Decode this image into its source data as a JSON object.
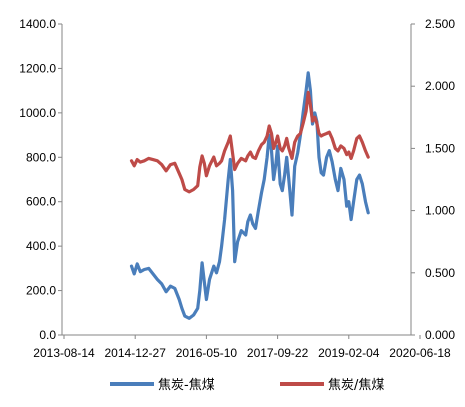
{
  "chart_data": {
    "type": "line",
    "title": "",
    "x_ticks": [
      "2013-08-14",
      "2014-12-27",
      "2016-05-10",
      "2017-09-22",
      "2019-02-04",
      "2020-06-18"
    ],
    "y_left": {
      "ylim": [
        0,
        1400
      ],
      "ticks": [
        "0.0",
        "200.0",
        "400.0",
        "600.0",
        "800.0",
        "1000.0",
        "1200.0",
        "1400.0"
      ]
    },
    "y_right": {
      "ylim": [
        0,
        2.5
      ],
      "ticks": [
        "0.000",
        "0.500",
        "1.000",
        "1.500",
        "2.000",
        "2.500"
      ]
    },
    "legend_position": "bottom",
    "series": [
      {
        "name": "焦炭-焦煤",
        "axis": "left",
        "color": "#4a7ebb",
        "points": [
          [
            "2014-12-01",
            310
          ],
          [
            "2014-12-20",
            275
          ],
          [
            "2015-01-10",
            320
          ],
          [
            "2015-02-01",
            285
          ],
          [
            "2015-03-01",
            295
          ],
          [
            "2015-04-01",
            300
          ],
          [
            "2015-05-01",
            275
          ],
          [
            "2015-06-01",
            250
          ],
          [
            "2015-07-01",
            230
          ],
          [
            "2015-08-01",
            195
          ],
          [
            "2015-09-01",
            220
          ],
          [
            "2015-10-01",
            210
          ],
          [
            "2015-11-01",
            160
          ],
          [
            "2015-11-20",
            120
          ],
          [
            "2015-12-10",
            85
          ],
          [
            "2016-01-10",
            75
          ],
          [
            "2016-02-10",
            90
          ],
          [
            "2016-03-10",
            120
          ],
          [
            "2016-03-25",
            200
          ],
          [
            "2016-04-10",
            325
          ],
          [
            "2016-04-25",
            240
          ],
          [
            "2016-05-10",
            160
          ],
          [
            "2016-06-01",
            250
          ],
          [
            "2016-07-01",
            310
          ],
          [
            "2016-07-20",
            280
          ],
          [
            "2016-08-10",
            330
          ],
          [
            "2016-08-25",
            400
          ],
          [
            "2016-09-15",
            520
          ],
          [
            "2016-10-10",
            700
          ],
          [
            "2016-10-25",
            790
          ],
          [
            "2016-11-10",
            650
          ],
          [
            "2016-11-25",
            330
          ],
          [
            "2016-12-15",
            420
          ],
          [
            "2017-01-10",
            470
          ],
          [
            "2017-02-10",
            450
          ],
          [
            "2017-02-25",
            510
          ],
          [
            "2017-03-15",
            540
          ],
          [
            "2017-04-01",
            500
          ],
          [
            "2017-04-20",
            480
          ],
          [
            "2017-05-10",
            560
          ],
          [
            "2017-06-01",
            640
          ],
          [
            "2017-06-20",
            700
          ],
          [
            "2017-07-10",
            800
          ],
          [
            "2017-07-25",
            900
          ],
          [
            "2017-08-10",
            830
          ],
          [
            "2017-08-25",
            700
          ],
          [
            "2017-09-10",
            770
          ],
          [
            "2017-09-22",
            850
          ],
          [
            "2017-10-10",
            680
          ],
          [
            "2017-10-25",
            650
          ],
          [
            "2017-11-10",
            720
          ],
          [
            "2017-11-25",
            800
          ],
          [
            "2017-12-10",
            700
          ],
          [
            "2018-01-01",
            540
          ],
          [
            "2018-01-20",
            760
          ],
          [
            "2018-02-10",
            820
          ],
          [
            "2018-03-01",
            900
          ],
          [
            "2018-03-20",
            1000
          ],
          [
            "2018-04-10",
            1100
          ],
          [
            "2018-04-25",
            1180
          ],
          [
            "2018-05-10",
            1100
          ],
          [
            "2018-05-25",
            950
          ],
          [
            "2018-06-10",
            1000
          ],
          [
            "2018-06-25",
            960
          ],
          [
            "2018-07-10",
            800
          ],
          [
            "2018-07-25",
            730
          ],
          [
            "2018-08-10",
            720
          ],
          [
            "2018-09-01",
            800
          ],
          [
            "2018-09-20",
            830
          ],
          [
            "2018-10-10",
            780
          ],
          [
            "2018-11-01",
            700
          ],
          [
            "2018-11-20",
            650
          ],
          [
            "2018-12-10",
            750
          ],
          [
            "2019-01-01",
            700
          ],
          [
            "2019-01-20",
            580
          ],
          [
            "2019-02-04",
            600
          ],
          [
            "2019-02-20",
            520
          ],
          [
            "2019-03-10",
            600
          ],
          [
            "2019-04-01",
            700
          ],
          [
            "2019-04-20",
            720
          ],
          [
            "2019-05-10",
            680
          ],
          [
            "2019-06-01",
            600
          ],
          [
            "2019-06-20",
            550
          ]
        ]
      },
      {
        "name": "焦炭/焦煤",
        "axis": "right",
        "color": "#be4b48",
        "points": [
          [
            "2014-12-01",
            1.4
          ],
          [
            "2014-12-20",
            1.36
          ],
          [
            "2015-01-10",
            1.41
          ],
          [
            "2015-02-01",
            1.39
          ],
          [
            "2015-03-01",
            1.4
          ],
          [
            "2015-04-01",
            1.42
          ],
          [
            "2015-05-01",
            1.41
          ],
          [
            "2015-06-01",
            1.4
          ],
          [
            "2015-07-01",
            1.37
          ],
          [
            "2015-08-01",
            1.32
          ],
          [
            "2015-09-01",
            1.37
          ],
          [
            "2015-10-01",
            1.38
          ],
          [
            "2015-11-01",
            1.3
          ],
          [
            "2015-11-20",
            1.25
          ],
          [
            "2015-12-10",
            1.17
          ],
          [
            "2016-01-10",
            1.15
          ],
          [
            "2016-02-10",
            1.17
          ],
          [
            "2016-03-10",
            1.2
          ],
          [
            "2016-03-25",
            1.35
          ],
          [
            "2016-04-10",
            1.44
          ],
          [
            "2016-04-25",
            1.38
          ],
          [
            "2016-05-10",
            1.28
          ],
          [
            "2016-06-01",
            1.36
          ],
          [
            "2016-07-01",
            1.43
          ],
          [
            "2016-07-20",
            1.36
          ],
          [
            "2016-08-10",
            1.38
          ],
          [
            "2016-08-25",
            1.4
          ],
          [
            "2016-09-15",
            1.48
          ],
          [
            "2016-10-10",
            1.55
          ],
          [
            "2016-10-25",
            1.6
          ],
          [
            "2016-11-10",
            1.46
          ],
          [
            "2016-11-25",
            1.33
          ],
          [
            "2016-12-15",
            1.38
          ],
          [
            "2017-01-10",
            1.42
          ],
          [
            "2017-02-10",
            1.4
          ],
          [
            "2017-02-25",
            1.44
          ],
          [
            "2017-03-15",
            1.47
          ],
          [
            "2017-04-01",
            1.43
          ],
          [
            "2017-04-20",
            1.42
          ],
          [
            "2017-05-10",
            1.48
          ],
          [
            "2017-06-01",
            1.53
          ],
          [
            "2017-06-20",
            1.55
          ],
          [
            "2017-07-10",
            1.6
          ],
          [
            "2017-07-25",
            1.68
          ],
          [
            "2017-08-10",
            1.62
          ],
          [
            "2017-08-25",
            1.5
          ],
          [
            "2017-09-10",
            1.55
          ],
          [
            "2017-09-22",
            1.6
          ],
          [
            "2017-10-10",
            1.5
          ],
          [
            "2017-10-25",
            1.48
          ],
          [
            "2017-11-10",
            1.52
          ],
          [
            "2017-11-25",
            1.58
          ],
          [
            "2017-12-10",
            1.5
          ],
          [
            "2018-01-01",
            1.42
          ],
          [
            "2018-01-20",
            1.55
          ],
          [
            "2018-02-10",
            1.6
          ],
          [
            "2018-03-01",
            1.62
          ],
          [
            "2018-03-20",
            1.7
          ],
          [
            "2018-04-10",
            1.8
          ],
          [
            "2018-04-25",
            1.95
          ],
          [
            "2018-05-10",
            1.85
          ],
          [
            "2018-05-25",
            1.72
          ],
          [
            "2018-06-10",
            1.75
          ],
          [
            "2018-06-25",
            1.7
          ],
          [
            "2018-07-10",
            1.62
          ],
          [
            "2018-07-25",
            1.6
          ],
          [
            "2018-08-10",
            1.61
          ],
          [
            "2018-09-01",
            1.62
          ],
          [
            "2018-09-20",
            1.63
          ],
          [
            "2018-10-10",
            1.58
          ],
          [
            "2018-11-01",
            1.5
          ],
          [
            "2018-11-20",
            1.48
          ],
          [
            "2018-12-10",
            1.52
          ],
          [
            "2019-01-01",
            1.5
          ],
          [
            "2019-01-20",
            1.45
          ],
          [
            "2019-02-04",
            1.47
          ],
          [
            "2019-02-20",
            1.42
          ],
          [
            "2019-03-10",
            1.48
          ],
          [
            "2019-04-01",
            1.58
          ],
          [
            "2019-04-20",
            1.6
          ],
          [
            "2019-05-10",
            1.55
          ],
          [
            "2019-06-01",
            1.48
          ],
          [
            "2019-06-20",
            1.43
          ]
        ]
      }
    ]
  }
}
